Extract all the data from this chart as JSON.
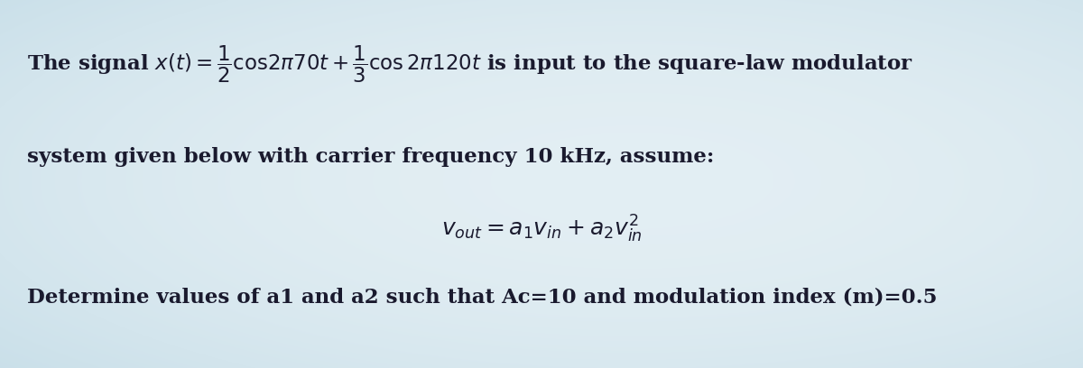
{
  "bg_color": "#c8dde8",
  "fig_width": 12.0,
  "fig_height": 4.08,
  "dpi": 100,
  "text_color": "#1a1a2e",
  "line1": "The signal $x(t) = \\dfrac{1}{2}\\mathrm{cos}2\\pi70t + \\dfrac{1}{3}\\mathrm{cos}\\,2\\pi120t$ is input to the square-law modulator",
  "line2": "system given below with carrier frequency 10 kHz, assume:",
  "line3": "$v_{out} = a_1v_{in} + a_2v^2_{in}$",
  "line4": "Determine values of a1 and a2 such that Ac=10 and modulation index (m)=0.5",
  "font_size_main": 16.5,
  "font_size_eq": 18,
  "font_family": "DejaVu Serif"
}
